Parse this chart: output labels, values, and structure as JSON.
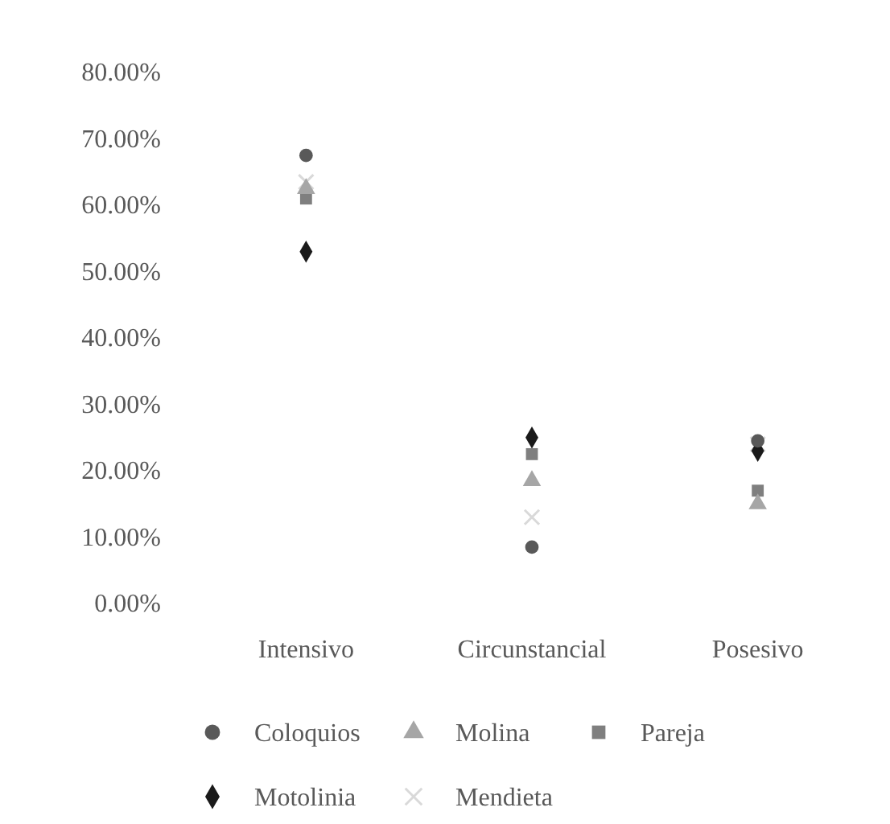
{
  "chart_data": {
    "type": "scatter",
    "categories": [
      "Intensivo",
      "Circunstancial",
      "Posesivo"
    ],
    "ylim": [
      0,
      80
    ],
    "yticks": [
      {
        "value": 0,
        "label": "0.00%"
      },
      {
        "value": 10,
        "label": "10.00%"
      },
      {
        "value": 20,
        "label": "20.00%"
      },
      {
        "value": 30,
        "label": "30.00%"
      },
      {
        "value": 40,
        "label": "40.00%"
      },
      {
        "value": 50,
        "label": "50.00%"
      },
      {
        "value": 60,
        "label": "60.00%"
      },
      {
        "value": 70,
        "label": "70.00%"
      },
      {
        "value": 80,
        "label": "80.00%"
      }
    ],
    "grid": false,
    "legend": "bottom",
    "series": [
      {
        "name": "Coloquios",
        "color": "#595959",
        "marker": "circle",
        "values": [
          67.5,
          8.5,
          24.5
        ]
      },
      {
        "name": "Molina",
        "color": "#a6a6a6",
        "marker": "triangle",
        "values": [
          62.5,
          18.5,
          15
        ]
      },
      {
        "name": "Pareja",
        "color": "#7f7f7f",
        "marker": "square",
        "values": [
          61,
          22.5,
          17
        ]
      },
      {
        "name": "Motolinia",
        "color": "#1a1a1a",
        "marker": "diamond",
        "values": [
          53,
          25,
          23
        ]
      },
      {
        "name": "Mendieta",
        "color": "#d9d9d9",
        "marker": "cross",
        "values": [
          63.5,
          13,
          24
        ]
      }
    ]
  }
}
